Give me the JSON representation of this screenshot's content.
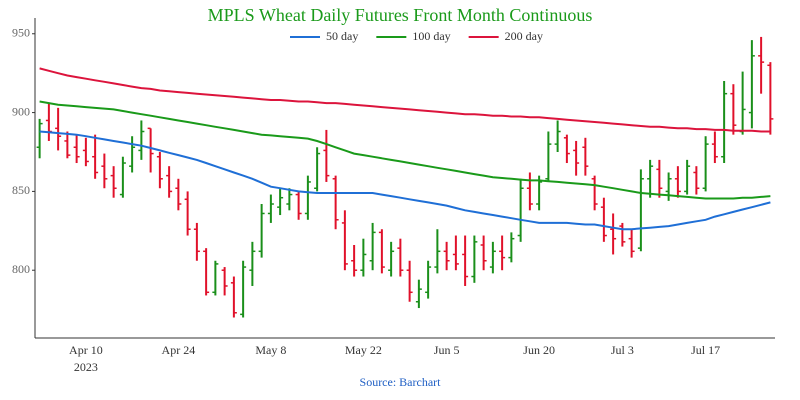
{
  "chart_data": {
    "type": "ohlc",
    "title": "MPLS Wheat Daily Futures Front Month Continuous",
    "source": "Source: Barchart",
    "year_label": "2023",
    "categories": [
      null,
      null,
      null,
      null,
      null,
      "Apr 10",
      null,
      null,
      null,
      null,
      null,
      null,
      null,
      null,
      null,
      "Apr 24",
      null,
      null,
      null,
      null,
      null,
      null,
      null,
      null,
      null,
      "May 8",
      null,
      null,
      null,
      null,
      null,
      null,
      null,
      null,
      null,
      "May 22",
      null,
      null,
      null,
      null,
      null,
      null,
      null,
      null,
      "Jun 5",
      null,
      null,
      null,
      null,
      null,
      null,
      null,
      null,
      null,
      "Jun 20",
      null,
      null,
      null,
      null,
      null,
      null,
      null,
      null,
      "Jul 3",
      null,
      null,
      null,
      null,
      null,
      null,
      null,
      null,
      "Jul 17",
      null,
      null,
      null,
      null,
      null,
      null,
      null
    ],
    "open": [
      878,
      895,
      890,
      882,
      878,
      876,
      872,
      866,
      860,
      848,
      866,
      876,
      890,
      872,
      860,
      852,
      845,
      826,
      812,
      786,
      800,
      792,
      772,
      800,
      812,
      836,
      840,
      842,
      848,
      836,
      852,
      876,
      858,
      830,
      806,
      800,
      806,
      824,
      800,
      814,
      800,
      780,
      786,
      802,
      812,
      810,
      810,
      796,
      816,
      802,
      812,
      808,
      822,
      852,
      842,
      858,
      880,
      884,
      876,
      878,
      858,
      840,
      826,
      828,
      820,
      814,
      858,
      864,
      850,
      858,
      850,
      862,
      852,
      880,
      872,
      912,
      888,
      900,
      936,
      930
    ],
    "high": [
      896,
      906,
      903,
      888,
      886,
      884,
      886,
      874,
      866,
      872,
      885,
      895,
      890,
      875,
      866,
      858,
      850,
      830,
      814,
      806,
      802,
      796,
      806,
      818,
      842,
      848,
      852,
      852,
      850,
      860,
      878,
      889,
      860,
      838,
      816,
      820,
      830,
      826,
      818,
      820,
      806,
      794,
      806,
      826,
      818,
      822,
      822,
      822,
      822,
      818,
      822,
      824,
      858,
      862,
      860,
      888,
      895,
      886,
      882,
      884,
      860,
      846,
      836,
      830,
      826,
      864,
      870,
      870,
      862,
      866,
      870,
      866,
      885,
      888,
      920,
      918,
      926,
      946,
      948,
      932
    ],
    "low": [
      871,
      882,
      876,
      871,
      868,
      866,
      858,
      852,
      846,
      846,
      862,
      870,
      862,
      852,
      846,
      838,
      822,
      806,
      784,
      784,
      784,
      770,
      770,
      790,
      808,
      830,
      835,
      838,
      832,
      832,
      850,
      856,
      826,
      800,
      796,
      796,
      800,
      798,
      796,
      796,
      780,
      776,
      782,
      798,
      800,
      800,
      790,
      792,
      800,
      798,
      800,
      805,
      818,
      838,
      838,
      856,
      875,
      868,
      860,
      860,
      838,
      818,
      810,
      815,
      808,
      812,
      846,
      846,
      844,
      846,
      848,
      848,
      850,
      868,
      868,
      886,
      886,
      890,
      912,
      886
    ],
    "close": [
      893,
      888,
      885,
      873,
      872,
      869,
      862,
      858,
      852,
      868,
      878,
      888,
      874,
      858,
      850,
      842,
      826,
      812,
      786,
      804,
      790,
      773,
      802,
      812,
      836,
      842,
      846,
      848,
      836,
      856,
      874,
      860,
      832,
      804,
      800,
      810,
      824,
      802,
      812,
      800,
      786,
      788,
      802,
      812,
      806,
      804,
      796,
      818,
      806,
      812,
      808,
      820,
      852,
      842,
      856,
      880,
      888,
      874,
      868,
      866,
      842,
      822,
      820,
      818,
      812,
      858,
      866,
      852,
      858,
      850,
      866,
      852,
      880,
      872,
      912,
      892,
      902,
      936,
      932,
      896
    ],
    "up_color": "#1a8f1a",
    "down_color": "#e0102a",
    "series": [
      {
        "name": "50 day",
        "color": "#1f6fd6",
        "values": [
          888,
          887.5,
          887,
          886.5,
          886,
          885,
          884,
          883,
          882,
          881,
          880,
          879,
          877.5,
          876,
          874.5,
          873,
          871.5,
          870,
          868,
          866,
          864,
          862,
          860,
          858,
          855.5,
          853,
          852,
          851,
          850,
          849.5,
          849,
          849,
          849,
          849,
          849,
          849,
          849,
          848,
          847,
          846,
          845,
          844,
          843,
          842,
          841,
          839.5,
          838,
          837,
          836,
          835,
          834,
          833,
          832,
          831,
          830,
          830,
          830,
          830,
          829.5,
          829,
          829,
          828,
          827,
          826,
          826,
          826.5,
          827,
          827.5,
          828,
          829,
          830,
          831,
          832,
          834,
          835.5,
          837,
          838.5,
          840,
          841.5,
          843
        ]
      },
      {
        "name": "100 day",
        "color": "#1a9a1a",
        "values": [
          907,
          906,
          905,
          904.5,
          904,
          903.5,
          903,
          902.5,
          902,
          901,
          900,
          899,
          898,
          897,
          896,
          895,
          894,
          893,
          892,
          891,
          890,
          889,
          888,
          887,
          886,
          885.5,
          885,
          884.5,
          884,
          883.5,
          882,
          880,
          878,
          876,
          874,
          873,
          872,
          871,
          870,
          869,
          868,
          867,
          866,
          865,
          864,
          863,
          862,
          861,
          860,
          859,
          858.5,
          858,
          857.5,
          857,
          857,
          856.5,
          856,
          855.5,
          855,
          854.5,
          854,
          853,
          852,
          851,
          850,
          849,
          848.5,
          848,
          847.5,
          847,
          846.5,
          846,
          845.5,
          845.5,
          845.5,
          845.5,
          846,
          846,
          846.5,
          847
        ]
      },
      {
        "name": "200 day",
        "color": "#dc143c",
        "values": [
          928,
          926.5,
          925,
          923.5,
          922.5,
          921.5,
          920.5,
          919.5,
          918.5,
          917.5,
          916.5,
          915.5,
          915,
          914,
          913.5,
          913,
          912.5,
          912,
          911.5,
          911,
          910.5,
          910,
          909.5,
          909,
          908.5,
          908,
          908,
          907.5,
          907,
          907,
          906.5,
          906,
          906,
          905.5,
          905,
          904.5,
          904,
          903.5,
          903,
          902.5,
          902,
          901.5,
          901,
          900.5,
          900,
          899.5,
          899,
          899,
          898.5,
          898,
          898,
          897.5,
          897.5,
          897,
          897,
          896.5,
          896,
          895.5,
          895,
          894.5,
          894,
          893.5,
          893,
          892.5,
          892,
          891.5,
          891,
          891,
          890.5,
          890,
          890,
          889.5,
          889.5,
          889,
          889,
          888.5,
          888.5,
          888.5,
          888,
          888
        ]
      }
    ],
    "ylim": [
      757,
      960
    ],
    "yticks": [
      800,
      850,
      900,
      950
    ],
    "grid": false
  }
}
